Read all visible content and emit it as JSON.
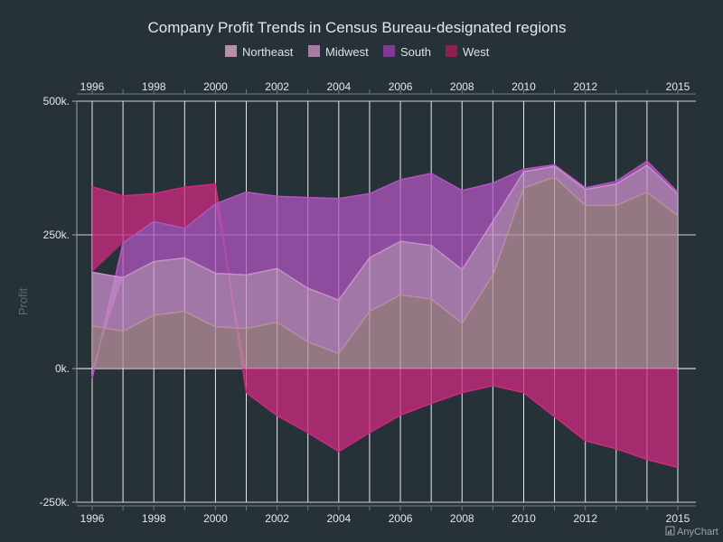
{
  "chart_data": {
    "type": "area",
    "stacked": true,
    "title": "Company Profit Trends in Census Bureau-designated regions",
    "ylabel": "Profit",
    "xlabel": "",
    "ylim": [
      -250000,
      500000
    ],
    "y_ticks": [
      {
        "value": 500000,
        "label": "500k."
      },
      {
        "value": 250000,
        "label": "250k."
      },
      {
        "value": 0,
        "label": "0k."
      },
      {
        "value": -250000,
        "label": "-250k."
      }
    ],
    "x": [
      1996,
      1997,
      1998,
      1999,
      2000,
      2001,
      2002,
      2003,
      2004,
      2005,
      2006,
      2007,
      2008,
      2009,
      2010,
      2011,
      2012,
      2013,
      2014,
      2015
    ],
    "x_tick_labels": [
      "1996",
      "1998",
      "2000",
      "2002",
      "2004",
      "2006",
      "2008",
      "2010",
      "2012",
      "2015"
    ],
    "legend_position": "top",
    "grid": true,
    "series": [
      {
        "name": "Northeast",
        "color": "#b8909c",
        "values": [
          80000,
          70000,
          100000,
          107000,
          78000,
          75000,
          87000,
          50000,
          28000,
          107000,
          138000,
          130000,
          85000,
          175000,
          338000,
          358000,
          305000,
          305000,
          330000,
          286000
        ]
      },
      {
        "name": "Midwest",
        "color": "#c98fcc",
        "values": [
          100000,
          100000,
          100000,
          100000,
          100000,
          100000,
          100000,
          100000,
          100000,
          100000,
          100000,
          100000,
          100000,
          100000,
          30000,
          20000,
          30000,
          40000,
          50000,
          40000
        ]
      },
      {
        "name": "South",
        "color": "#b055c0",
        "values": [
          -18000,
          65000,
          75000,
          55000,
          130000,
          155000,
          135000,
          170000,
          190000,
          120000,
          115000,
          135000,
          148000,
          72000,
          5000,
          3000,
          3000,
          5000,
          8000,
          4000
        ]
      },
      {
        "name": "West",
        "color": "#ce2a80",
        "values": [
          160000,
          88000,
          52000,
          77000,
          37000,
          -45000,
          -88000,
          -120000,
          -155000,
          -120000,
          -87000,
          -65000,
          -45000,
          -32000,
          -45000,
          -90000,
          -135000,
          -150000,
          -170000,
          -185000
        ]
      }
    ]
  },
  "legend_items": [
    {
      "name": "Northeast",
      "swatch": "#b890a0"
    },
    {
      "name": "Midwest",
      "swatch": "#a77aa9"
    },
    {
      "name": "South",
      "swatch": "#7d3c8f"
    },
    {
      "name": "West",
      "swatch": "#8d2050"
    }
  ],
  "credit": "AnyChart"
}
